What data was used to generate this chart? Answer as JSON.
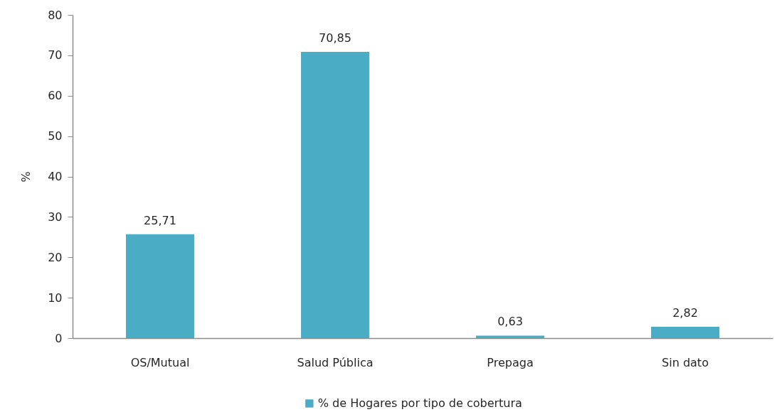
{
  "chart_data": {
    "type": "bar",
    "ylabel": "%",
    "categories": [
      "OS/Mutual",
      "Salud Pública",
      "Prepaga",
      "Sin dato"
    ],
    "series": [
      {
        "name": "% de Hogares por tipo de cobertura",
        "color": "#4bacc6",
        "values": [
          25.71,
          70.85,
          0.63,
          2.82
        ],
        "value_labels": [
          "25,71",
          "70,85",
          "0,63",
          "2,82"
        ]
      }
    ],
    "ylim": [
      0,
      80
    ],
    "yticks": [
      0,
      10,
      20,
      30,
      40,
      50,
      60,
      70,
      80
    ],
    "legend": "bottom"
  }
}
